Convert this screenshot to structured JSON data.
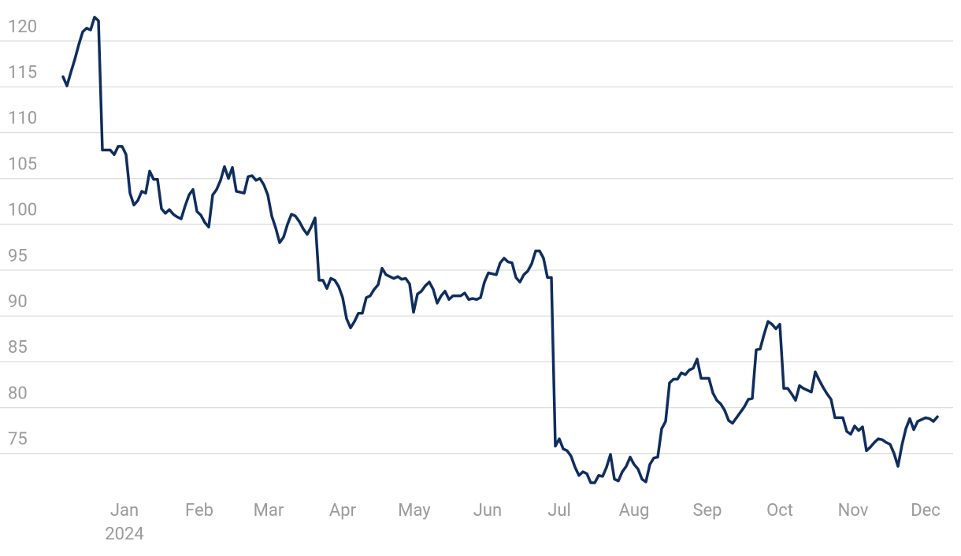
{
  "chart_data": {
    "type": "line",
    "color": "#0f2d5e",
    "values": [
      116.1,
      115.1,
      116.6,
      118.0,
      119.6,
      121.0,
      121.4,
      121.2,
      122.6,
      122.2,
      108.1,
      108.1,
      108.1,
      107.6,
      108.5,
      108.5,
      107.6,
      103.4,
      102.1,
      102.6,
      103.6,
      103.4,
      105.8,
      104.9,
      104.9,
      101.7,
      101.2,
      101.6,
      101.1,
      100.8,
      100.6,
      102.0,
      103.2,
      103.8,
      101.4,
      101.0,
      100.2,
      99.7,
      103.2,
      103.8,
      104.8,
      106.3,
      105.0,
      106.2,
      103.6,
      103.5,
      103.4,
      105.2,
      105.3,
      104.8,
      105.0,
      104.3,
      103.2,
      100.9,
      99.6,
      98.0,
      98.6,
      100.0,
      101.1,
      100.9,
      100.3,
      99.5,
      98.9,
      99.7,
      100.7,
      93.9,
      93.9,
      93.0,
      94.1,
      93.9,
      93.2,
      92.0,
      89.7,
      88.7,
      89.4,
      90.3,
      90.3,
      92.0,
      92.2,
      92.9,
      93.4,
      95.2,
      94.5,
      94.3,
      94.1,
      94.3,
      94.0,
      94.1,
      93.5,
      90.4,
      92.4,
      92.7,
      93.3,
      93.7,
      92.9,
      91.4,
      92.2,
      92.7,
      91.8,
      92.2,
      92.2,
      92.2,
      92.5,
      91.8,
      91.9,
      91.8,
      92.0,
      93.7,
      94.7,
      94.6,
      94.5,
      95.8,
      96.3,
      95.9,
      95.8,
      94.2,
      93.7,
      94.5,
      94.9,
      95.7,
      97.1,
      97.1,
      96.3,
      94.2,
      94.2,
      75.8,
      76.6,
      75.5,
      75.3,
      74.7,
      73.5,
      72.6,
      73.0,
      72.8,
      71.8,
      71.8,
      72.6,
      72.5,
      73.5,
      74.9,
      72.2,
      72.0,
      73.0,
      73.6,
      74.6,
      73.8,
      73.3,
      72.2,
      71.9,
      73.8,
      74.5,
      74.6,
      77.7,
      78.5,
      82.7,
      83.1,
      83.1,
      83.8,
      83.6,
      84.1,
      84.3,
      85.3,
      83.2,
      83.2,
      83.2,
      81.6,
      80.8,
      80.4,
      79.7,
      78.6,
      78.3,
      78.9,
      79.5,
      80.1,
      80.9,
      81.0,
      86.3,
      86.4,
      88.0,
      89.4,
      89.1,
      88.6,
      89.1,
      82.1,
      82.1,
      81.5,
      80.8,
      82.4,
      82.1,
      81.9,
      81.7,
      83.9,
      83.0,
      82.2,
      81.5,
      80.9,
      78.9,
      78.9,
      78.9,
      77.4,
      77.1,
      78.0,
      77.5,
      77.9,
      75.3,
      75.7,
      76.2,
      76.6,
      76.5,
      76.2,
      76.0,
      75.0,
      73.6,
      75.9,
      77.7,
      78.8,
      77.6,
      78.5,
      78.7,
      78.9,
      78.8,
      78.5,
      79.0
    ],
    "xlim": [
      -16,
      226
    ],
    "xticks": [
      {
        "value": 15.6,
        "label": "Jan"
      },
      {
        "value": 34.6,
        "label": "Feb"
      },
      {
        "value": 52.2,
        "label": "Mar"
      },
      {
        "value": 71,
        "label": "Apr"
      },
      {
        "value": 89.2,
        "label": "May"
      },
      {
        "value": 107.8,
        "label": "Jun"
      },
      {
        "value": 126,
        "label": "Jul"
      },
      {
        "value": 145,
        "label": "Aug"
      },
      {
        "value": 163.6,
        "label": "Sep"
      },
      {
        "value": 182,
        "label": "Oct"
      },
      {
        "value": 200.6,
        "label": "Nov"
      },
      {
        "value": 219,
        "label": "Dec"
      }
    ],
    "x_year_label": "2024",
    "ylim": [
      70,
      123.5
    ],
    "yticks": [
      75,
      80,
      85,
      90,
      95,
      100,
      105,
      110,
      115,
      120
    ],
    "grid": true
  }
}
